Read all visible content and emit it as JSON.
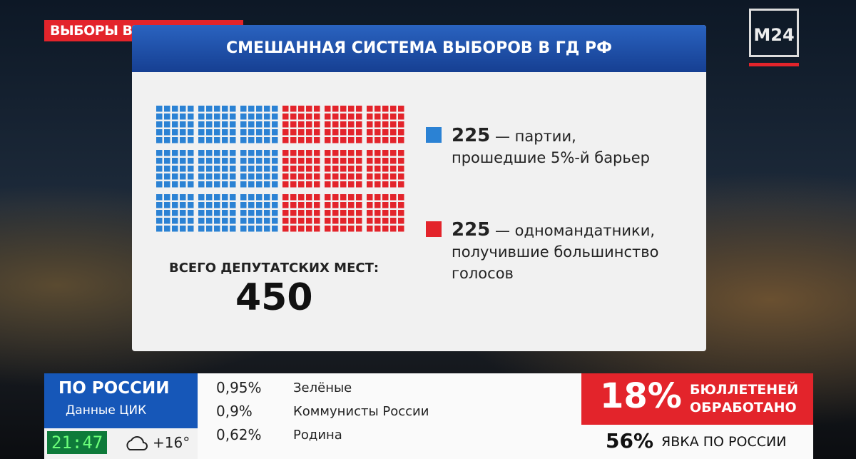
{
  "header": {
    "tag": "ВЫБОРЫ В ГОСДУМУ РФ",
    "logo": "M24"
  },
  "card": {
    "title": "СМЕШАННАЯ СИСТЕМА ВЫБОРОВ В ГД РФ",
    "groups": [
      {
        "seats": 225,
        "color": "#2b82d4",
        "lines": [
          "— партии,",
          "прошедшие 5%-й барьер"
        ]
      },
      {
        "seats": 225,
        "color": "#e3242b",
        "lines": [
          "— одномандатники,",
          "получившие большинство",
          "голосов"
        ]
      }
    ],
    "total_label": "ВСЕГО ДЕПУТАТСКИХ МЕСТ:",
    "total": 450
  },
  "ticker": {
    "region": "ПО РОССИИ",
    "source": "Данные ЦИК",
    "time": "21:47",
    "temp": "+16°",
    "rows": [
      {
        "pct": "0,95%",
        "party": "Зелёные"
      },
      {
        "pct": "0,9%",
        "party": "Коммунисты России"
      },
      {
        "pct": "0,62%",
        "party": "Родина"
      }
    ],
    "processed": "18%",
    "processed_label": [
      "БЮЛЛЕТЕНЕЙ",
      "ОБРАБОТАНО"
    ],
    "turnout": "56%",
    "turnout_label": "ЯВКА ПО РОССИИ"
  }
}
